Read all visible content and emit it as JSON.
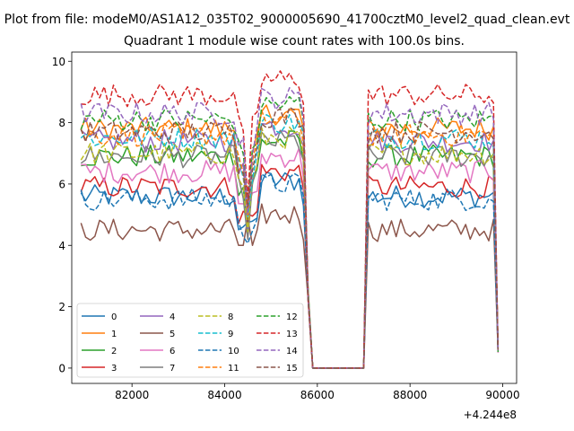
{
  "suptitle": "Plot from file: modeM0/AS1A12_035T02_9000005690_41700cztM0_level2_quad_clean.evt",
  "chart_data": {
    "type": "line",
    "title": "Quadrant 1 module wise count rates with 100.0s bins.",
    "xlabel": "",
    "ylabel": "",
    "x_offset_label": "+4.244e8",
    "xlim": [
      80700,
      90300
    ],
    "ylim": [
      -0.5,
      10.3
    ],
    "x_ticks": [
      82000,
      84000,
      86000,
      88000,
      90000
    ],
    "x_tick_labels": [
      "82000",
      "84000",
      "86000",
      "88000",
      "90000"
    ],
    "y_ticks": [
      0,
      2,
      4,
      6,
      8,
      10
    ],
    "y_tick_labels": [
      "0",
      "2",
      "4",
      "6",
      "8",
      "10"
    ],
    "grid": false,
    "legend_position": "lower-left",
    "legend_columns": 4,
    "time_axis": {
      "segments": [
        {
          "start": 80900,
          "end": 85800,
          "step": 100
        },
        {
          "start": 87100,
          "end": 89800,
          "step": 100
        }
      ],
      "gap_zero": [
        85900,
        87000
      ],
      "dip_at": 84500
    },
    "series": [
      {
        "name": "0",
        "color": "#1f77b4",
        "dash": false,
        "level": 5.6
      },
      {
        "name": "1",
        "color": "#ff7f0e",
        "dash": false,
        "level": 7.8
      },
      {
        "name": "2",
        "color": "#2ca02c",
        "dash": false,
        "level": 6.9
      },
      {
        "name": "3",
        "color": "#d62728",
        "dash": false,
        "level": 5.9
      },
      {
        "name": "4",
        "color": "#9467bd",
        "dash": false,
        "level": 7.4
      },
      {
        "name": "5",
        "color": "#8c564b",
        "dash": false,
        "level": 4.5
      },
      {
        "name": "6",
        "color": "#e377c2",
        "dash": false,
        "level": 6.4
      },
      {
        "name": "7",
        "color": "#7f7f7f",
        "dash": false,
        "level": 6.9
      },
      {
        "name": "8",
        "color": "#bcbd22",
        "dash": true,
        "level": 7.0
      },
      {
        "name": "9",
        "color": "#17becf",
        "dash": true,
        "level": 7.5
      },
      {
        "name": "10",
        "color": "#1f77b4",
        "dash": true,
        "level": 5.5
      },
      {
        "name": "11",
        "color": "#ff7f0e",
        "dash": true,
        "level": 7.6
      },
      {
        "name": "12",
        "color": "#2ca02c",
        "dash": true,
        "level": 8.1
      },
      {
        "name": "13",
        "color": "#d62728",
        "dash": true,
        "level": 8.9
      },
      {
        "name": "14",
        "color": "#9467bd",
        "dash": true,
        "level": 8.3
      },
      {
        "name": "15",
        "color": "#8c564b",
        "dash": true,
        "level": 7.7
      }
    ]
  }
}
